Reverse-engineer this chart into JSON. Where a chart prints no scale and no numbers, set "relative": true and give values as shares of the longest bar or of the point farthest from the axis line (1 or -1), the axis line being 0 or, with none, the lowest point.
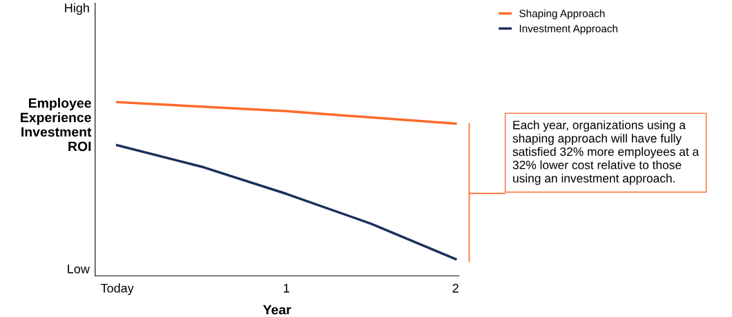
{
  "chart_data": {
    "type": "line",
    "relative": true,
    "xlabel": "Year",
    "ylabel": "Employee\nExperience\nInvestment\nROI",
    "xlim": [
      -0.13,
      2.02
    ],
    "xticks": [
      {
        "value": 0,
        "label": "Today"
      },
      1,
      2
    ],
    "series": [
      {
        "name": "Shaping Approach",
        "color": "#ff6a2b",
        "x": [
          0,
          1,
          2
        ],
        "values": [
          1,
          0.948,
          0.876
        ]
      },
      {
        "name": "Investment Approach",
        "color": "#1b2f5c",
        "x": [
          0,
          0.5,
          1,
          1.5,
          2
        ],
        "values": [
          0.752,
          0.628,
          0.472,
          0.3,
          0.096
        ]
      }
    ],
    "annotations": [
      "High",
      "Low",
      "Each year, organizations using a shaping approach will have fully satisfied 32% more employees at a 32% lower cost relative to those using an investment approach."
    ],
    "legend": "top right",
    "grid": false,
    "marker": "none",
    "line_style": "solid"
  }
}
